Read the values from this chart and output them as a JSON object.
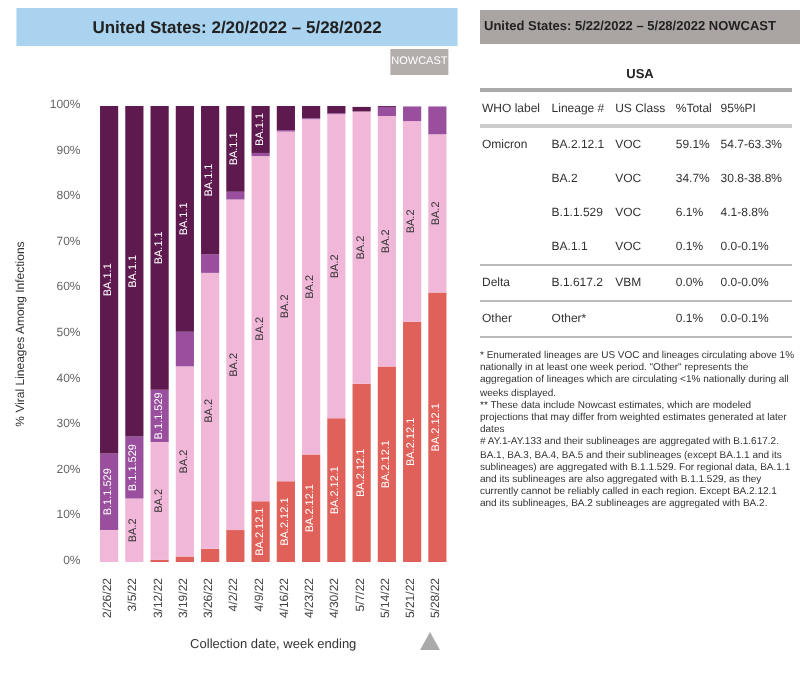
{
  "chart_data": [
    {
      "type": "bar",
      "stacked": true,
      "title": "United States: 2/20/2022 – 5/28/2022",
      "xlabel": "Collection date, week ending",
      "ylabel": "% Viral Lineages Among Infections",
      "categories": [
        "2/26/22",
        "3/5/22",
        "3/12/22",
        "3/19/22",
        "3/26/22",
        "4/2/22",
        "4/9/22",
        "4/16/22",
        "4/23/22",
        "4/30/22",
        "5/7/22",
        "5/14/22",
        "5/21/22",
        "5/28/22"
      ],
      "series": [
        {
          "name": "BA.2.12.1",
          "color": "#e0605a",
          "values": [
            0,
            0,
            0.5,
            1.2,
            2.9,
            7,
            13.3,
            17.7,
            23.6,
            31.5,
            39.1,
            42.9,
            52.7,
            59.1
          ]
        },
        {
          "name": "BA.2",
          "color": "#f1b7d9",
          "values": [
            7,
            13.9,
            25.8,
            41.7,
            60.5,
            72.5,
            75.7,
            76.7,
            73.5,
            66.7,
            59.7,
            54.9,
            44,
            34.7
          ]
        },
        {
          "name": "B.1.1.529",
          "color": "#9a4f9e",
          "values": [
            16.8,
            13.6,
            11.5,
            7.6,
            4.1,
            1.7,
            0.7,
            0.3,
            0.2,
            0.2,
            null,
            2,
            3.2,
            6.1
          ]
        },
        {
          "name": "BA.1.1",
          "color": "#5e1a4f",
          "values": [
            76.2,
            72.5,
            62.2,
            49.5,
            32.5,
            18.8,
            10.3,
            5.3,
            2.7,
            1.6,
            1,
            0.2,
            null,
            null
          ]
        }
      ],
      "ylim": [
        0,
        100
      ],
      "yticks": [
        {
          "value": 0,
          "label": "0%"
        },
        {
          "value": 10,
          "label": "10%"
        },
        {
          "value": 20,
          "label": "20%"
        },
        {
          "value": 30,
          "label": "30%"
        },
        {
          "value": 40,
          "label": "40%"
        },
        {
          "value": 50,
          "label": "50%"
        },
        {
          "value": 60,
          "label": "60%"
        },
        {
          "value": 70,
          "label": "70%"
        },
        {
          "value": 80,
          "label": "80%"
        },
        {
          "value": 90,
          "label": "90%"
        },
        {
          "value": 100,
          "label": "100%"
        }
      ],
      "grid": false,
      "legend": false,
      "annotations": [
        "NOWCAST"
      ]
    },
    {
      "type": "other",
      "title": "United States: 5/22/2022 – 5/28/2022 NOWCAST",
      "subtitle": "USA",
      "categories": [
        "WHO label",
        "Lineage #",
        "US Class",
        "%Total",
        "95%PI"
      ],
      "cell_labels": [
        [
          "Omicron",
          "BA.2.12.1",
          "VOC",
          "59.1%",
          "54.7-63.3%"
        ],
        [
          null,
          "BA.2",
          "VOC",
          "34.7%",
          "30.8-38.8%"
        ],
        [
          null,
          "B.1.1.529",
          "VOC",
          "6.1%",
          "4.1-8.8%"
        ],
        [
          null,
          "BA.1.1",
          "VOC",
          "0.1%",
          "0.0-0.1%"
        ],
        [
          "Delta",
          "B.1.617.2",
          "VBM",
          "0.0%",
          "0.0-0.0%"
        ],
        [
          "Other",
          "Other*",
          null,
          "0.1%",
          "0.0-0.1%"
        ]
      ],
      "annotations": [
        "* Enumerated lineages are US VOC and lineages circulating above 1% nationally in at least one week period. \"Other\" represents the aggregation of lineages which are circulating <1% nationally during all weeks displayed.",
        "** These data include Nowcast estimates, which are modeled projections that may differ from weighted estimates generated at later dates",
        "# AY.1-AY.133 and their sublineages are aggregated with B.1.617.2. BA.1, BA.3, BA.4, BA.5 and their sublineages (except BA.1.1 and its sublineages) are aggregated with B.1.1.529. For regional data, BA.1.1 and its sublineages are also aggregated with B.1.1.529, as they currently cannot be reliably called in each region. Except BA.2.12.1 and its sublineages, BA.2 sublineages are aggregated with BA.2."
      ]
    }
  ]
}
